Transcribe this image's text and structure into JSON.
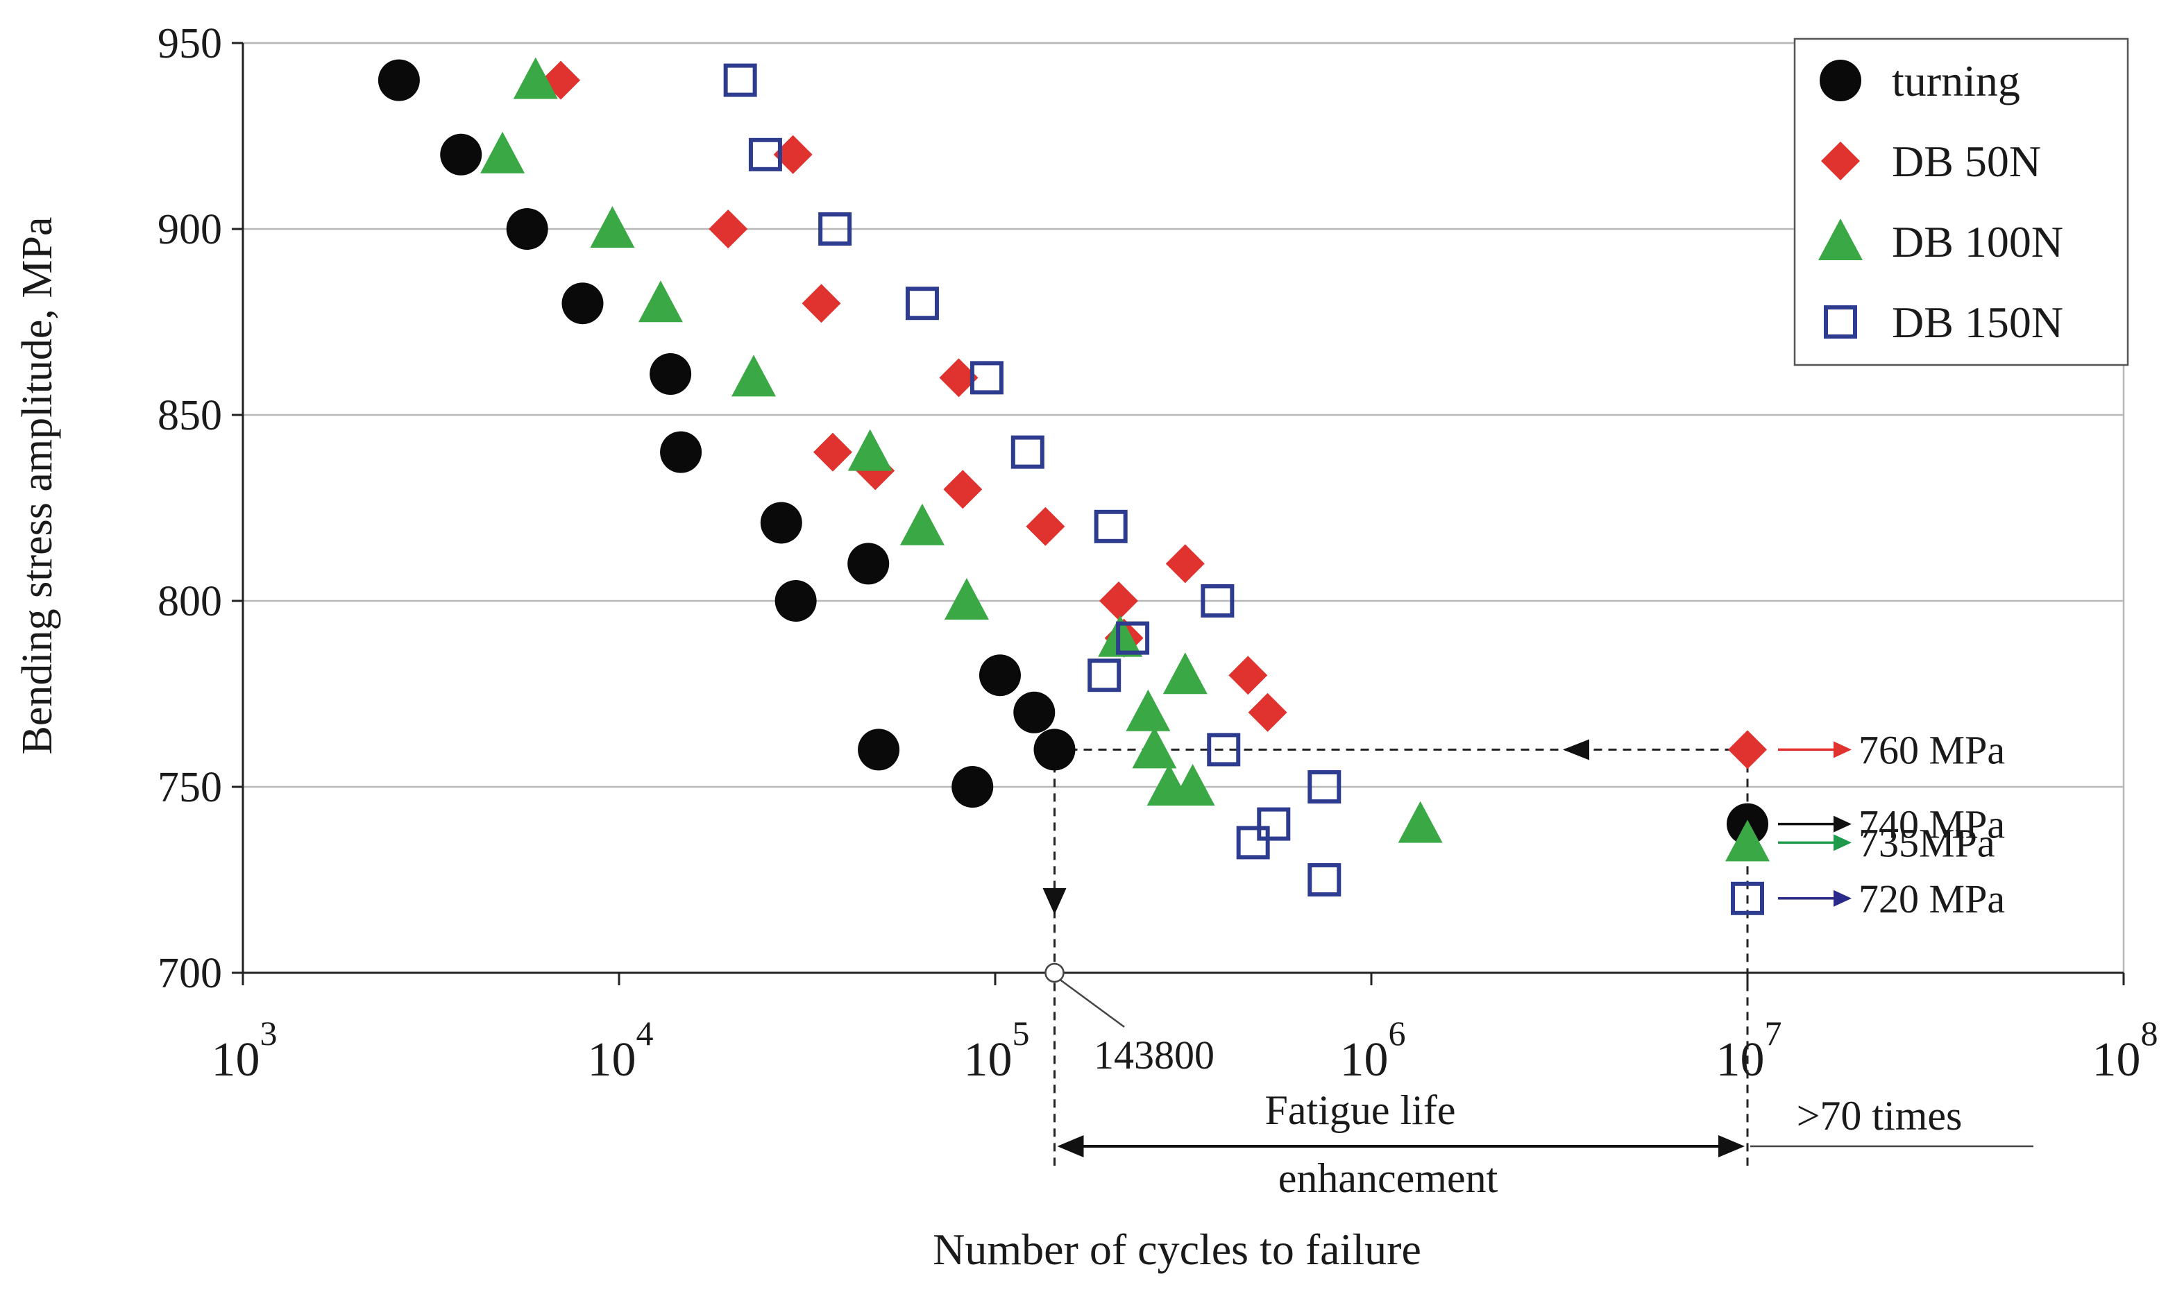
{
  "chart_data": {
    "type": "scatter",
    "xscale": "log",
    "xlim": [
      1000,
      100000000
    ],
    "ylim": [
      700,
      950
    ],
    "xlabel": "Number of cycles to failure",
    "ylabel": "Bending stress amplitude, MPa",
    "y_ticks": [
      700,
      750,
      800,
      850,
      900,
      950
    ],
    "x_ticks": [
      {
        "value": 1000,
        "base": "10",
        "exp": "3"
      },
      {
        "value": 10000,
        "base": "10",
        "exp": "4"
      },
      {
        "value": 100000,
        "base": "10",
        "exp": "5"
      },
      {
        "value": 1000000,
        "base": "10",
        "exp": "6"
      },
      {
        "value": 10000000,
        "base": "10",
        "exp": "7"
      },
      {
        "value": 100000000,
        "base": "10",
        "exp": "8"
      }
    ],
    "gridlines": "horizontal",
    "legend_position": "top-right",
    "series": [
      {
        "name": "turning",
        "key": "turning",
        "marker": "circle",
        "color": "#0a0a0a",
        "points": [
          [
            2600,
            940
          ],
          [
            3800,
            920
          ],
          [
            5700,
            900
          ],
          [
            8000,
            880
          ],
          [
            13700,
            861
          ],
          [
            14600,
            840
          ],
          [
            27000,
            821
          ],
          [
            29500,
            800
          ],
          [
            46000,
            810
          ],
          [
            49000,
            760
          ],
          [
            87000,
            750
          ],
          [
            103000,
            780
          ],
          [
            127000,
            770
          ],
          [
            143800,
            760
          ],
          [
            10000000,
            740
          ]
        ]
      },
      {
        "name": "DB 50N",
        "key": "db50",
        "marker": "diamond",
        "color": "#e0322e",
        "points": [
          [
            7000,
            940
          ],
          [
            29000,
            920
          ],
          [
            19500,
            900
          ],
          [
            34500,
            880
          ],
          [
            80000,
            860
          ],
          [
            37000,
            840
          ],
          [
            48000,
            835
          ],
          [
            82000,
            830
          ],
          [
            136000,
            820
          ],
          [
            213000,
            800
          ],
          [
            320000,
            810
          ],
          [
            220000,
            790
          ],
          [
            470000,
            780
          ],
          [
            530000,
            770
          ],
          [
            10000000,
            760
          ]
        ]
      },
      {
        "name": "DB 100N",
        "key": "db100",
        "marker": "triangle",
        "color": "#3aa844",
        "points": [
          [
            6000,
            940
          ],
          [
            4900,
            920
          ],
          [
            9600,
            900
          ],
          [
            12900,
            880
          ],
          [
            22800,
            860
          ],
          [
            46500,
            840
          ],
          [
            64000,
            820
          ],
          [
            84000,
            800
          ],
          [
            215000,
            790
          ],
          [
            255000,
            770
          ],
          [
            265000,
            760
          ],
          [
            320000,
            780
          ],
          [
            290000,
            750
          ],
          [
            335000,
            750
          ],
          [
            1350000,
            740
          ],
          [
            10000000,
            735
          ]
        ]
      },
      {
        "name": "DB 150N",
        "key": "db150",
        "marker": "square",
        "color": "#2e3c8f",
        "points": [
          [
            21000,
            940
          ],
          [
            24500,
            920
          ],
          [
            37500,
            900
          ],
          [
            64000,
            880
          ],
          [
            95000,
            860
          ],
          [
            122000,
            840
          ],
          [
            203000,
            820
          ],
          [
            390000,
            800
          ],
          [
            232000,
            790
          ],
          [
            195000,
            780
          ],
          [
            405000,
            760
          ],
          [
            750000,
            750
          ],
          [
            550000,
            740
          ],
          [
            485000,
            735
          ],
          [
            750000,
            725
          ],
          [
            10000000,
            720
          ]
        ]
      }
    ],
    "limit_labels": [
      {
        "series": "db50",
        "text": "760 MPa",
        "value": 760,
        "color": "#e0322e"
      },
      {
        "series": "turning",
        "text": "740 MPa",
        "value": 740,
        "color": "#111111"
      },
      {
        "series": "db100",
        "text": "735MPa",
        "value": 735,
        "color": "#1f9a4c"
      },
      {
        "series": "db150",
        "text": "720 MPa",
        "value": 720,
        "color": "#2a2a8a"
      }
    ],
    "annotations": {
      "cycles_marker": "143800",
      "cycles_marker_value": 143800,
      "runout_value": 10000000,
      "reference_stress": 760,
      "enhancement_line1": "Fatigue life",
      "enhancement_line2": "enhancement",
      "enhancement_factor": ">70 times"
    }
  }
}
